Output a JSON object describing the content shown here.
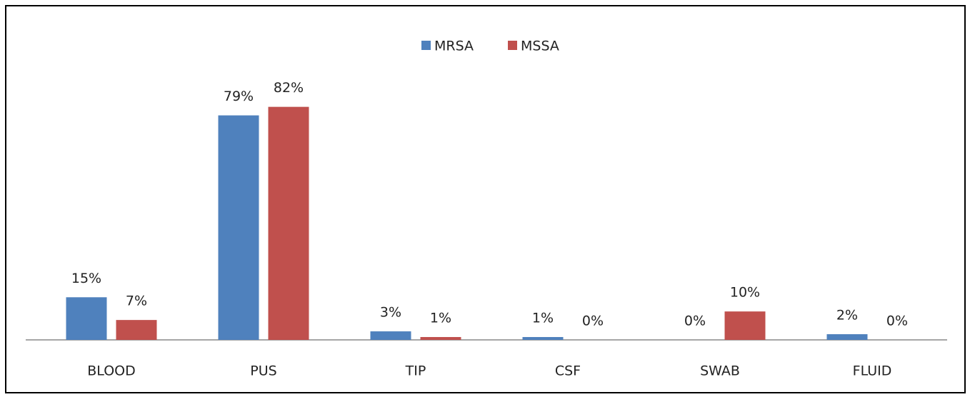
{
  "chart_data": {
    "type": "bar",
    "categories": [
      "BLOOD",
      "PUS",
      "TIP",
      "CSF",
      "SWAB",
      "FLUID"
    ],
    "series": [
      {
        "name": "MRSA",
        "color": "#4f81bd",
        "values": [
          15,
          79,
          3,
          1,
          0,
          2
        ],
        "value_labels": [
          "15%",
          "79%",
          "3%",
          "1%",
          "0%",
          "2%"
        ]
      },
      {
        "name": "MSSA",
        "color": "#c0504d",
        "values": [
          7,
          82,
          1,
          0,
          10,
          0
        ],
        "value_labels": [
          "7%",
          "82%",
          "1%",
          "0%",
          "10%",
          "0%"
        ]
      }
    ],
    "legend": "top"
  }
}
